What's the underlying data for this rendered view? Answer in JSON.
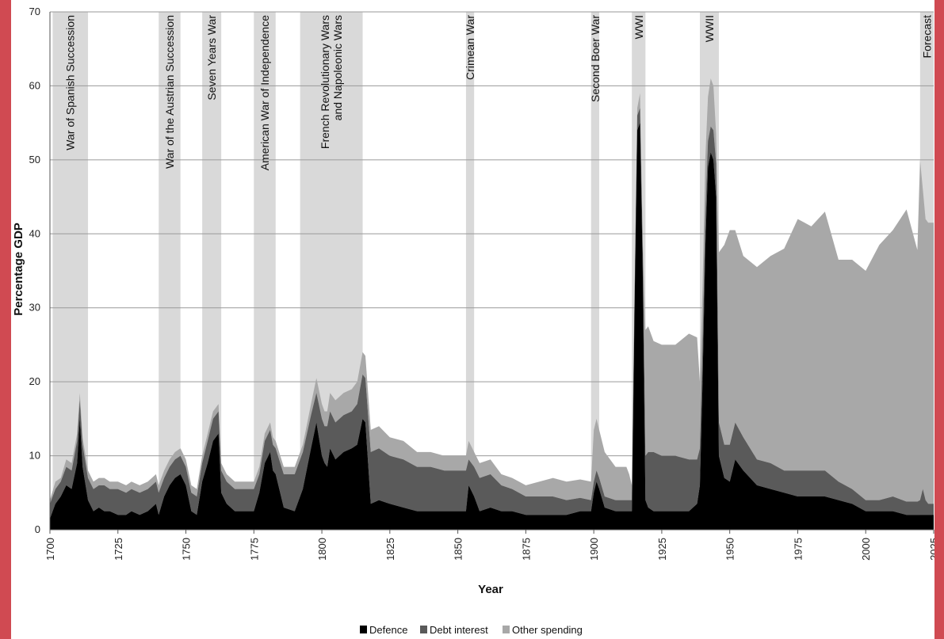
{
  "chart_data": {
    "type": "area",
    "stacked": true,
    "title": "",
    "xlabel": "Year",
    "ylabel": "Percentage GDP",
    "xlim": [
      1700,
      2025
    ],
    "ylim": [
      0,
      70
    ],
    "y_ticks": [
      0,
      10,
      20,
      30,
      40,
      50,
      60,
      70
    ],
    "x_ticks": [
      1700,
      1725,
      1750,
      1775,
      1800,
      1825,
      1850,
      1875,
      1900,
      1925,
      1950,
      1975,
      2000,
      2025
    ],
    "grid": true,
    "legend_position": "bottom-center",
    "colors": {
      "Defence": "#000000",
      "Debt interest": "#5a5a5a",
      "Other spending": "#a8a8a8",
      "bands": "#d9d9d9"
    },
    "x": [
      1700,
      1702,
      1704,
      1706,
      1708,
      1710,
      1711,
      1712,
      1714,
      1716,
      1718,
      1720,
      1722,
      1725,
      1728,
      1730,
      1733,
      1736,
      1739,
      1740,
      1742,
      1744,
      1746,
      1748,
      1750,
      1752,
      1754,
      1756,
      1758,
      1760,
      1762,
      1763,
      1765,
      1768,
      1772,
      1775,
      1777,
      1779,
      1781,
      1782,
      1783,
      1786,
      1790,
      1793,
      1796,
      1798,
      1800,
      1801,
      1802,
      1803,
      1805,
      1808,
      1811,
      1813,
      1815,
      1816,
      1818,
      1821,
      1825,
      1830,
      1835,
      1840,
      1845,
      1850,
      1853,
      1854,
      1856,
      1858,
      1862,
      1866,
      1870,
      1875,
      1880,
      1885,
      1890,
      1895,
      1899,
      1900,
      1901,
      1902,
      1904,
      1908,
      1912,
      1913,
      1914,
      1915,
      1916,
      1917,
      1918,
      1919,
      1920,
      1922,
      1925,
      1930,
      1935,
      1938,
      1939,
      1940,
      1941,
      1942,
      1943,
      1944,
      1945,
      1946,
      1948,
      1950,
      1952,
      1955,
      1960,
      1965,
      1970,
      1975,
      1980,
      1985,
      1990,
      1995,
      2000,
      2005,
      2010,
      2015,
      2019,
      2020,
      2021,
      2022,
      2023,
      2025
    ],
    "series": [
      {
        "name": "Defence",
        "values": [
          1.5,
          3.5,
          4.5,
          6.0,
          5.5,
          9.0,
          15.0,
          8.5,
          4.0,
          2.5,
          3.0,
          2.5,
          2.5,
          2.0,
          2.0,
          2.5,
          2.0,
          2.5,
          3.5,
          2.0,
          4.5,
          6.0,
          7.0,
          7.5,
          6.0,
          2.5,
          2.0,
          6.5,
          9.0,
          12.0,
          13.0,
          5.0,
          3.5,
          2.5,
          2.5,
          2.5,
          5.0,
          9.0,
          10.5,
          8.0,
          7.5,
          3.0,
          2.5,
          5.5,
          11.0,
          14.5,
          10.0,
          9.0,
          8.5,
          11.0,
          9.5,
          10.5,
          11.0,
          11.5,
          15.0,
          14.5,
          3.5,
          4.0,
          3.5,
          3.0,
          2.5,
          2.5,
          2.5,
          2.5,
          2.5,
          6.0,
          4.5,
          2.5,
          3.0,
          2.5,
          2.5,
          2.0,
          2.0,
          2.0,
          2.0,
          2.5,
          2.5,
          5.0,
          6.5,
          5.5,
          3.0,
          2.5,
          2.5,
          2.5,
          2.5,
          30.0,
          54.0,
          55.0,
          35.0,
          4.0,
          3.0,
          2.5,
          2.5,
          2.5,
          2.5,
          3.5,
          6.0,
          20.0,
          38.0,
          49.0,
          51.0,
          50.0,
          45.0,
          10.0,
          7.0,
          6.5,
          9.5,
          8.0,
          6.0,
          5.5,
          5.0,
          4.5,
          4.5,
          4.5,
          4.0,
          3.5,
          2.5,
          2.5,
          2.5,
          2.0,
          2.0,
          2.0,
          2.0,
          2.0,
          2.0,
          2.0
        ]
      },
      {
        "name": "Debt interest",
        "values": [
          2.0,
          2.0,
          2.0,
          2.5,
          2.5,
          3.0,
          2.5,
          3.0,
          3.0,
          3.0,
          3.0,
          3.5,
          3.0,
          3.5,
          3.0,
          3.0,
          3.0,
          3.0,
          3.0,
          3.0,
          2.5,
          2.5,
          2.5,
          2.5,
          2.5,
          2.5,
          2.5,
          2.5,
          3.0,
          3.0,
          3.0,
          3.0,
          3.0,
          3.0,
          3.0,
          3.0,
          2.5,
          3.0,
          3.0,
          3.5,
          3.5,
          4.5,
          5.0,
          5.0,
          4.5,
          4.0,
          5.0,
          5.0,
          5.5,
          5.0,
          5.0,
          5.0,
          5.0,
          5.5,
          6.0,
          6.0,
          7.0,
          7.0,
          6.5,
          6.5,
          6.0,
          6.0,
          5.5,
          5.5,
          5.5,
          3.5,
          4.0,
          4.5,
          4.5,
          3.5,
          3.0,
          2.5,
          2.5,
          2.5,
          2.0,
          1.8,
          1.5,
          1.5,
          1.5,
          1.5,
          1.5,
          1.5,
          1.5,
          1.5,
          1.5,
          1.5,
          2.0,
          2.0,
          3.0,
          6.0,
          7.5,
          8.0,
          7.5,
          7.5,
          7.0,
          6.0,
          5.0,
          5.0,
          4.0,
          3.5,
          3.5,
          4.0,
          4.5,
          4.5,
          4.5,
          5.0,
          5.0,
          4.5,
          3.5,
          3.5,
          3.0,
          3.5,
          3.5,
          3.5,
          2.5,
          2.0,
          1.5,
          1.5,
          2.0,
          1.8,
          1.8,
          2.0,
          3.5,
          2.0,
          1.5,
          1.5
        ]
      },
      {
        "name": "Other spending",
        "values": [
          0.5,
          1.0,
          0.5,
          1.0,
          1.0,
          1.0,
          1.0,
          1.0,
          1.0,
          1.0,
          1.0,
          1.0,
          1.0,
          1.0,
          1.0,
          1.0,
          1.0,
          1.0,
          1.0,
          1.0,
          1.0,
          1.0,
          1.0,
          1.0,
          1.0,
          1.0,
          1.0,
          1.0,
          1.0,
          1.0,
          1.0,
          1.0,
          1.0,
          1.0,
          1.0,
          1.0,
          1.0,
          1.0,
          1.0,
          1.0,
          1.0,
          1.0,
          1.0,
          1.0,
          1.5,
          2.0,
          2.0,
          2.0,
          2.0,
          2.5,
          3.0,
          3.0,
          3.0,
          3.0,
          3.0,
          3.0,
          3.0,
          3.0,
          2.5,
          2.5,
          2.0,
          2.0,
          2.0,
          2.0,
          2.0,
          2.5,
          2.0,
          2.0,
          2.0,
          1.5,
          1.5,
          1.5,
          2.0,
          2.5,
          2.5,
          2.5,
          2.5,
          7.0,
          7.0,
          6.5,
          6.0,
          4.5,
          4.5,
          3.5,
          2.0,
          0.5,
          1.0,
          2.0,
          1.0,
          17.0,
          17.0,
          15.0,
          15.0,
          15.0,
          17.0,
          16.5,
          9.0,
          8.0,
          8.0,
          6.0,
          6.5,
          6.0,
          4.0,
          23.0,
          27.0,
          29.0,
          26.0,
          24.5,
          26.0,
          28.0,
          30.0,
          34.0,
          33.0,
          35.0,
          30.0,
          31.0,
          31.0,
          34.5,
          36.0,
          39.5,
          34.0,
          46.0,
          40.5,
          38.0,
          38.0,
          38.0
        ]
      }
    ],
    "bands": [
      {
        "label": "War of Spanish Succession",
        "start": 1701,
        "end": 1714
      },
      {
        "label": "War of the Austrian Succession",
        "start": 1740,
        "end": 1748
      },
      {
        "label": "Seven Years War",
        "start": 1756,
        "end": 1763
      },
      {
        "label": "American War of Independence",
        "start": 1775,
        "end": 1783
      },
      {
        "label": "French Revolutionary Wars",
        "label2": "and Napoleonic Wars",
        "start": 1792,
        "end": 1815
      },
      {
        "label": "Crimean War",
        "start": 1853,
        "end": 1856
      },
      {
        "label": "Second Boer War",
        "start": 1899,
        "end": 1902
      },
      {
        "label": "WWI",
        "start": 1914,
        "end": 1919
      },
      {
        "label": "WWII",
        "start": 1939,
        "end": 1946
      },
      {
        "label": "Forecast",
        "start": 2020,
        "end": 2025
      }
    ]
  }
}
